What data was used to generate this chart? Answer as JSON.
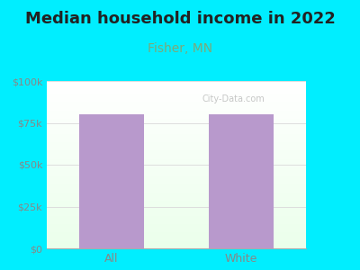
{
  "title": "Median household income in 2022",
  "subtitle": "Fisher, MN",
  "subtitle_color": "#7aaa7a",
  "categories": [
    "All",
    "White"
  ],
  "values": [
    80000,
    80000
  ],
  "bar_color": "#b899cc",
  "ylim": [
    0,
    100000
  ],
  "yticks": [
    0,
    25000,
    50000,
    75000,
    100000
  ],
  "ytick_labels": [
    "$0",
    "$25k",
    "$50k",
    "$75k",
    "$100k"
  ],
  "background_color": "#00eeff",
  "watermark": "City-Data.com",
  "title_fontsize": 13,
  "subtitle_fontsize": 10,
  "tick_color": "#888888",
  "grid_color": "#dddddd"
}
